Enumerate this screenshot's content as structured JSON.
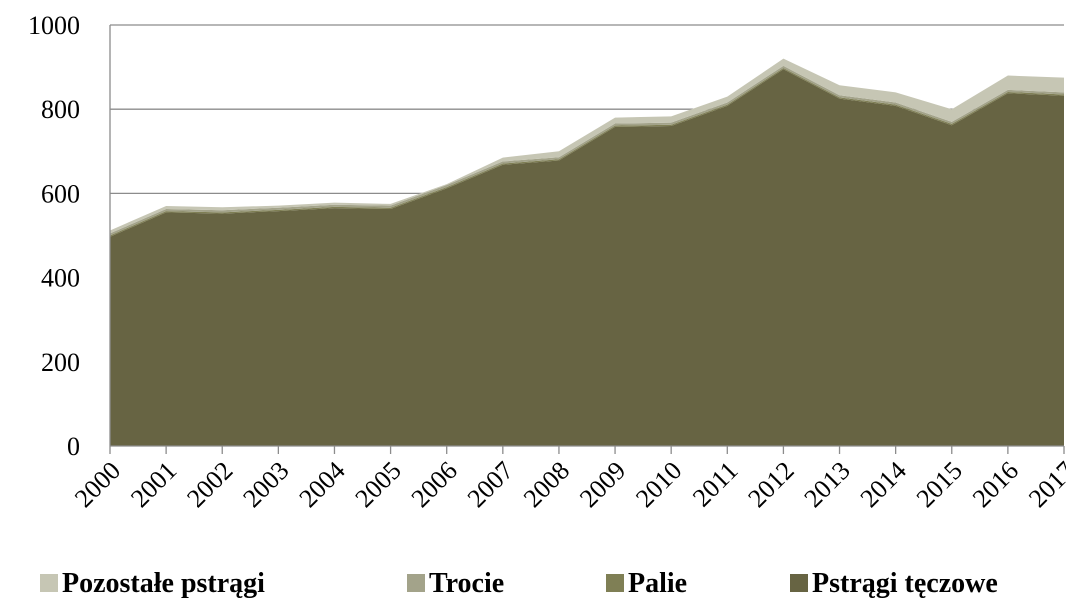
{
  "chart_data": {
    "type": "stacked_area",
    "categories": [
      "2000",
      "2001",
      "2002",
      "2003",
      "2004",
      "2005",
      "2006",
      "2007",
      "2008",
      "2009",
      "2010",
      "2011",
      "2012",
      "2013",
      "2014",
      "2015",
      "2016",
      "2017"
    ],
    "series": [
      {
        "name": "Pozostałe pstrągi",
        "color": "#c6c6b4",
        "values": [
          7,
          7,
          7,
          5,
          5,
          4,
          2,
          9,
          14,
          14,
          15,
          14,
          17,
          24,
          24,
          30,
          34,
          35
        ]
      },
      {
        "name": "Trocie",
        "color": "#a3a38a",
        "values": [
          5,
          5,
          5,
          5,
          5,
          5,
          5,
          5,
          5,
          5,
          5,
          5,
          5,
          5,
          5,
          5,
          5,
          5
        ]
      },
      {
        "name": "Palie",
        "color": "#7f7f55",
        "values": [
          3,
          3,
          3,
          3,
          3,
          3,
          3,
          3,
          3,
          3,
          3,
          3,
          3,
          3,
          3,
          3,
          3,
          3
        ]
      },
      {
        "name": "Pstrągi tęczowe",
        "color": "#676443",
        "values": [
          497,
          555,
          552,
          558,
          565,
          563,
          612,
          668,
          678,
          758,
          760,
          808,
          895,
          825,
          808,
          762,
          838,
          832
        ]
      }
    ],
    "ylim": [
      0,
      1000
    ],
    "yticks": [
      0,
      200,
      400,
      600,
      800,
      1000
    ],
    "grid": true,
    "legend": "bottom"
  }
}
